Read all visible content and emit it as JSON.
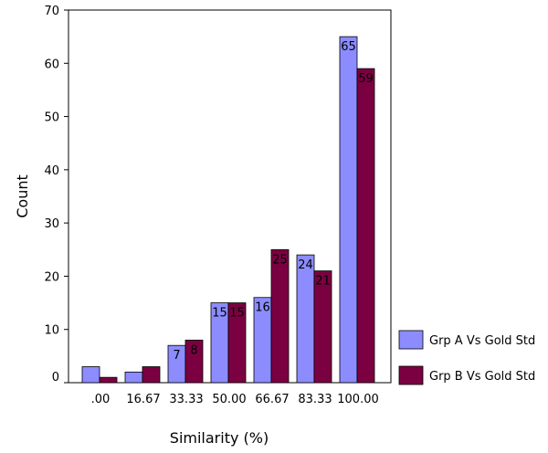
{
  "chart_data": {
    "type": "bar",
    "title": "",
    "xlabel": "Similarity (%)",
    "ylabel": "Count",
    "categories": [
      ".00",
      "16.67",
      "33.33",
      "50.00",
      "66.67",
      "83.33",
      "100.00"
    ],
    "ylim": [
      0,
      70
    ],
    "yticks": [
      0,
      10,
      20,
      30,
      40,
      50,
      60,
      70
    ],
    "grid": false,
    "legend_position": "bottom-right",
    "series": [
      {
        "name": "Grp A Vs Gold Std",
        "color": "#8c8cff",
        "values": [
          3,
          2,
          7,
          15,
          16,
          24,
          65
        ],
        "labels": [
          "",
          "",
          "7",
          "15",
          "16",
          "24",
          "65"
        ]
      },
      {
        "name": "Grp B Vs Gold Std",
        "color": "#7b0041",
        "values": [
          1,
          3,
          8,
          15,
          25,
          21,
          59
        ],
        "labels": [
          "",
          "",
          "8",
          "15",
          "25",
          "21",
          "59"
        ]
      }
    ]
  }
}
